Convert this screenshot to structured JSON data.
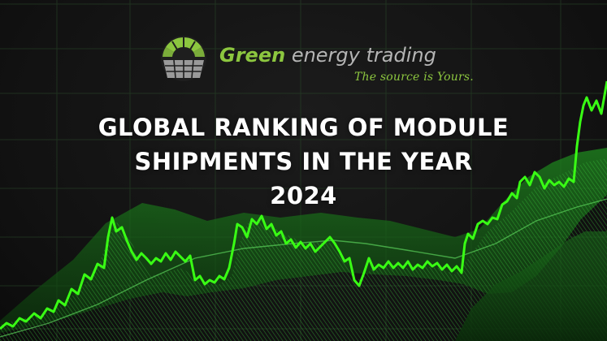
{
  "brand": {
    "name_part1": "Green",
    "name_part2": " energy trading",
    "tagline": "The source is Yours."
  },
  "headline": {
    "line1": "GLOBAL RANKING OF MODULE",
    "line2": "SHIPMENTS IN THE YEAR",
    "line3": "2024"
  },
  "colors": {
    "background": "#121212",
    "brand_green": "#8cc63f",
    "brand_grey": "#b5b5b5",
    "title_text": "#ffffff",
    "price_line": "#39ff14"
  },
  "icons": {
    "logo": "solar-panel-sun-icon"
  }
}
